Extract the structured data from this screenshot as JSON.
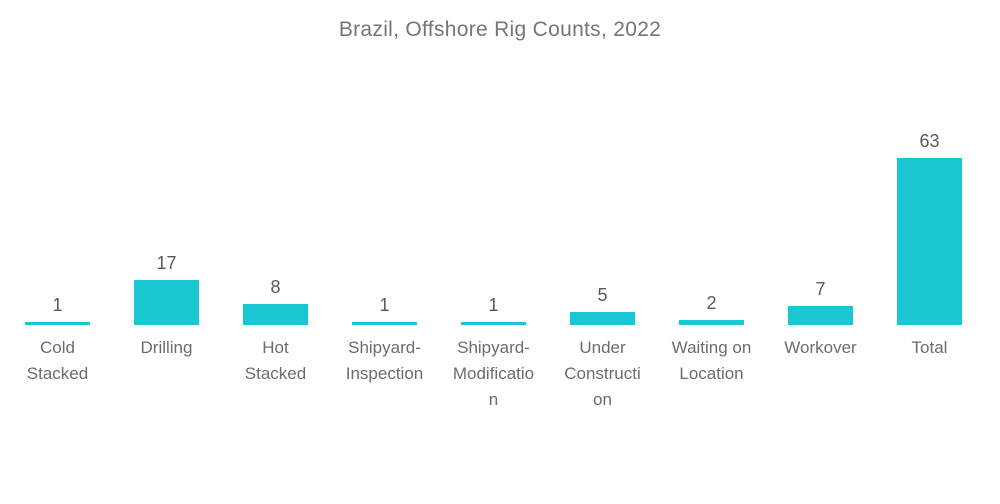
{
  "page": {
    "background_color": "#ffffff"
  },
  "chart_data": {
    "type": "bar",
    "title": "Brazil, Offshore Rig Counts, 2022",
    "categories": [
      "Cold Stacked",
      "Drilling",
      "Hot Stacked",
      "Shipyard-Inspection",
      "Shipyard-Modification",
      "Under Construction",
      "Waiting on Location",
      "Workover",
      "Total"
    ],
    "values": [
      1,
      17,
      8,
      1,
      1,
      5,
      2,
      7,
      63
    ],
    "value_labels": [
      "1",
      "17",
      "8",
      "1",
      "1",
      "5",
      "2",
      "7",
      "63"
    ],
    "display_labels": [
      [
        "Cold",
        "Stacked"
      ],
      [
        "Drilling"
      ],
      [
        "Hot",
        "Stacked"
      ],
      [
        "Shipyard-",
        "Inspection"
      ],
      [
        "Shipyard-",
        "Modificatio",
        "n"
      ],
      [
        "Under",
        "Constructi",
        "on"
      ],
      [
        "Waiting on",
        "Location"
      ],
      [
        "Workover"
      ],
      [
        "Total"
      ]
    ],
    "xlabel": "",
    "ylabel": "",
    "ylim": [
      0,
      63
    ],
    "bar_color": "#1ac6d2",
    "value_label_color": "#58595c",
    "category_label_color": "#6b6c6f",
    "title_color": "#747579",
    "grid": false,
    "legend": false,
    "axis_lines": false
  }
}
